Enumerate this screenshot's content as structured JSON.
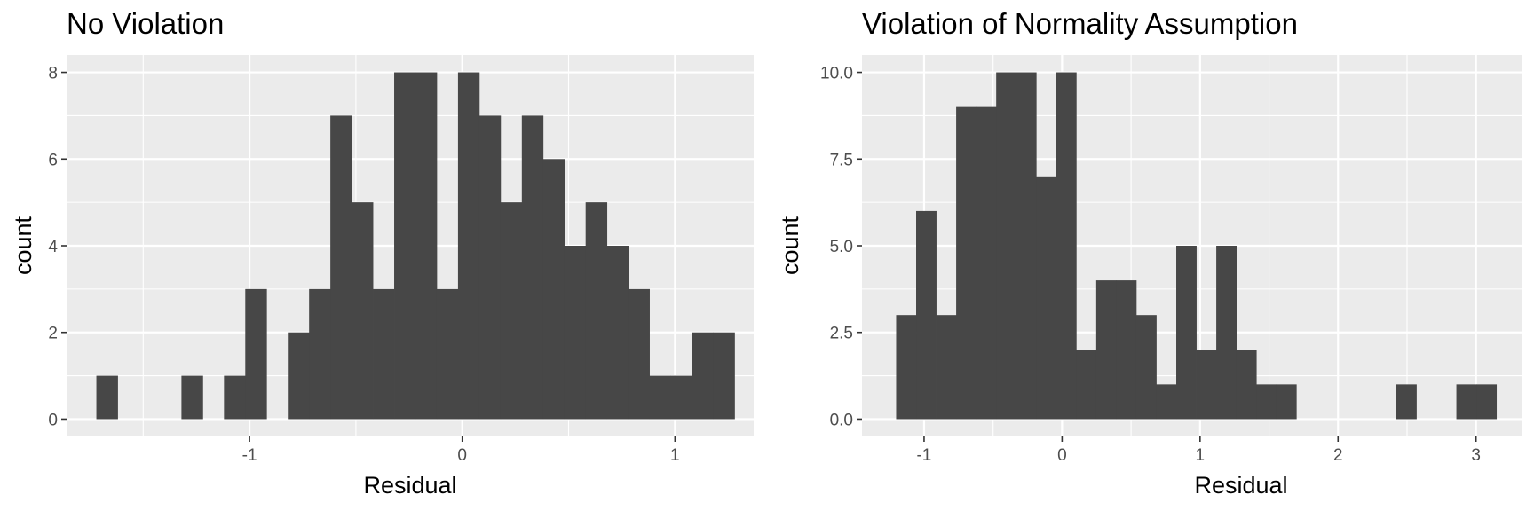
{
  "chart_data": [
    {
      "type": "bar",
      "title": "No Violation",
      "xlabel": "Residual",
      "ylabel": "count",
      "xlim": [
        -1.86,
        1.37
      ],
      "ylim": [
        -0.4,
        8.4
      ],
      "bin_width": 0.1,
      "bins": [
        {
          "x": -1.67,
          "count": 1
        },
        {
          "x": -1.27,
          "count": 1
        },
        {
          "x": -1.07,
          "count": 1
        },
        {
          "x": -0.97,
          "count": 3
        },
        {
          "x": -0.77,
          "count": 2
        },
        {
          "x": -0.67,
          "count": 3
        },
        {
          "x": -0.57,
          "count": 7
        },
        {
          "x": -0.47,
          "count": 5
        },
        {
          "x": -0.37,
          "count": 3
        },
        {
          "x": -0.27,
          "count": 8
        },
        {
          "x": -0.17,
          "count": 8
        },
        {
          "x": -0.07,
          "count": 3
        },
        {
          "x": 0.03,
          "count": 8
        },
        {
          "x": 0.13,
          "count": 7
        },
        {
          "x": 0.23,
          "count": 5
        },
        {
          "x": 0.33,
          "count": 7
        },
        {
          "x": 0.43,
          "count": 6
        },
        {
          "x": 0.53,
          "count": 4
        },
        {
          "x": 0.63,
          "count": 5
        },
        {
          "x": 0.73,
          "count": 4
        },
        {
          "x": 0.83,
          "count": 3
        },
        {
          "x": 0.93,
          "count": 1
        },
        {
          "x": 1.03,
          "count": 1
        },
        {
          "x": 1.13,
          "count": 2
        },
        {
          "x": 1.23,
          "count": 2
        }
      ],
      "x_ticks": [
        -1,
        0,
        1
      ],
      "x_tick_labels": [
        "-1",
        "0",
        "1"
      ],
      "y_ticks": [
        0,
        2,
        4,
        6,
        8
      ],
      "y_tick_labels": [
        "0",
        "2",
        "4",
        "6",
        "8"
      ],
      "grid": true,
      "colors": {
        "panel": "#ebebeb",
        "grid": "#ffffff",
        "bar": "#474747",
        "tick_text": "#4d4d4d"
      }
    },
    {
      "type": "bar",
      "title": "Violation of Normality Assumption",
      "xlabel": "Residual",
      "ylabel": "count",
      "xlim": [
        -1.45,
        3.33
      ],
      "ylim": [
        -0.5,
        10.5
      ],
      "bin_width": 0.145,
      "bins": [
        {
          "x": -1.13,
          "count": 3
        },
        {
          "x": -0.985,
          "count": 6
        },
        {
          "x": -0.84,
          "count": 3
        },
        {
          "x": -0.695,
          "count": 9
        },
        {
          "x": -0.55,
          "count": 9
        },
        {
          "x": -0.405,
          "count": 10
        },
        {
          "x": -0.26,
          "count": 10
        },
        {
          "x": -0.115,
          "count": 7
        },
        {
          "x": 0.03,
          "count": 10
        },
        {
          "x": 0.175,
          "count": 2
        },
        {
          "x": 0.32,
          "count": 4
        },
        {
          "x": 0.465,
          "count": 4
        },
        {
          "x": 0.61,
          "count": 3
        },
        {
          "x": 0.755,
          "count": 1
        },
        {
          "x": 0.9,
          "count": 5
        },
        {
          "x": 1.045,
          "count": 2
        },
        {
          "x": 1.19,
          "count": 5
        },
        {
          "x": 1.335,
          "count": 2
        },
        {
          "x": 1.48,
          "count": 1
        },
        {
          "x": 1.625,
          "count": 1
        },
        {
          "x": 2.495,
          "count": 1
        },
        {
          "x": 2.93,
          "count": 1
        },
        {
          "x": 3.075,
          "count": 1
        }
      ],
      "x_ticks": [
        -1,
        0,
        1,
        2,
        3
      ],
      "x_tick_labels": [
        "-1",
        "0",
        "1",
        "2",
        "3"
      ],
      "y_ticks": [
        0,
        2.5,
        5,
        7.5,
        10
      ],
      "y_tick_labels": [
        "0.0",
        "2.5",
        "5.0",
        "7.5",
        "10.0"
      ],
      "grid": true,
      "colors": {
        "panel": "#ebebeb",
        "grid": "#ffffff",
        "bar": "#474747",
        "tick_text": "#4d4d4d"
      }
    }
  ]
}
